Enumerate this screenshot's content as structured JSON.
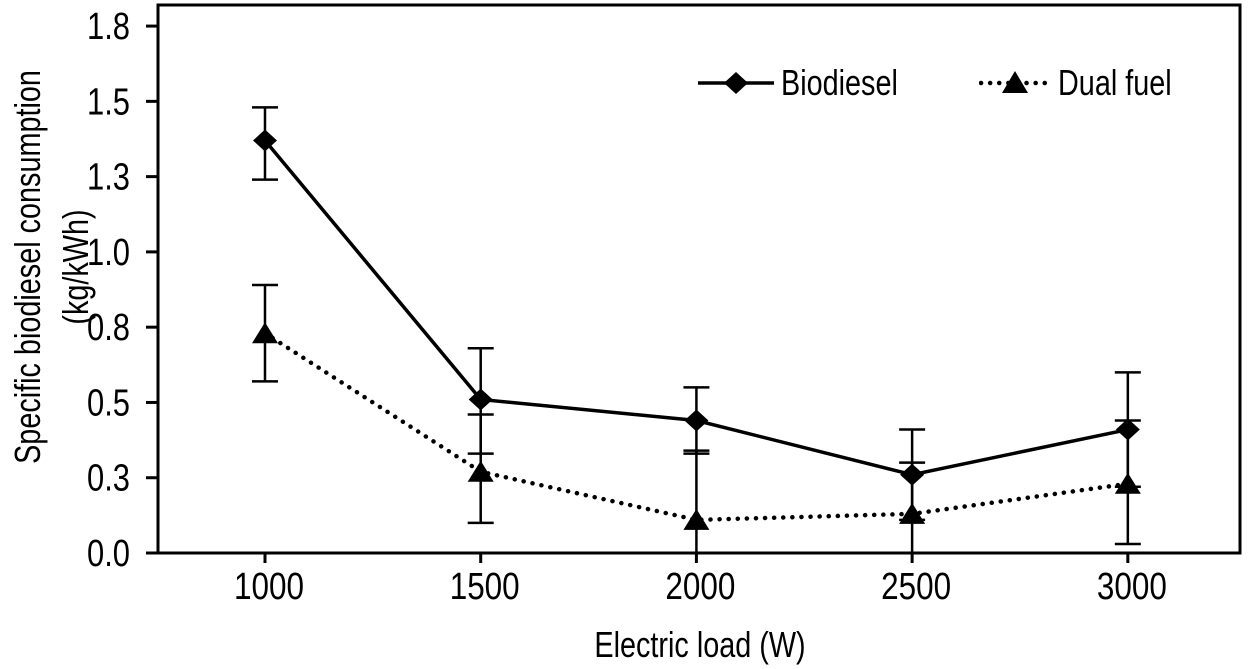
{
  "figure": {
    "kind": "scientific line chart with error bars",
    "background": "#ffffff"
  },
  "colors": {
    "foreground": "#000000",
    "background": "#ffffff"
  },
  "chart_data": {
    "type": "line",
    "title": "",
    "xlabel": "Electric load (W)",
    "ylabel": "Specific biodiesel consumption (kg/kWh)",
    "grid": false,
    "legend_position": "top-right-inside",
    "x": [
      1000,
      1500,
      2000,
      2500,
      3000
    ],
    "x_tick_labels": [
      "1000",
      "1500",
      "2000",
      "2500",
      "3000"
    ],
    "xlim": [
      752,
      3260
    ],
    "ylim": [
      0,
      1.82
    ],
    "y_tick_values": [
      0,
      0.25,
      0.5,
      0.75,
      1.0,
      1.25,
      1.5,
      1.75
    ],
    "y_tick_labels": [
      "0.0",
      "0.3",
      "0.5",
      "0.8",
      "1.0",
      "1.3",
      "1.5",
      "1.8"
    ],
    "series": [
      {
        "name": "Biodiesel",
        "color": "#000000",
        "line_style": "solid",
        "marker": "diamond",
        "marker_icon": "diamond-marker-icon",
        "values": [
          1.37,
          0.51,
          0.44,
          0.26,
          0.41
        ],
        "error_hi": [
          1.48,
          0.68,
          0.55,
          0.41,
          0.6
        ],
        "error_lo": [
          1.24,
          0.33,
          0.33,
          0.11,
          0.22
        ]
      },
      {
        "name": "Dual fuel",
        "color": "#000000",
        "line_style": "dotted",
        "marker": "triangle",
        "marker_icon": "triangle-marker-icon",
        "values": [
          0.73,
          0.27,
          0.11,
          0.13,
          0.23
        ],
        "error_hi": [
          0.89,
          0.46,
          0.34,
          0.3,
          0.44
        ],
        "error_lo": [
          0.57,
          0.1,
          0.0,
          0.0,
          0.03
        ]
      }
    ]
  }
}
